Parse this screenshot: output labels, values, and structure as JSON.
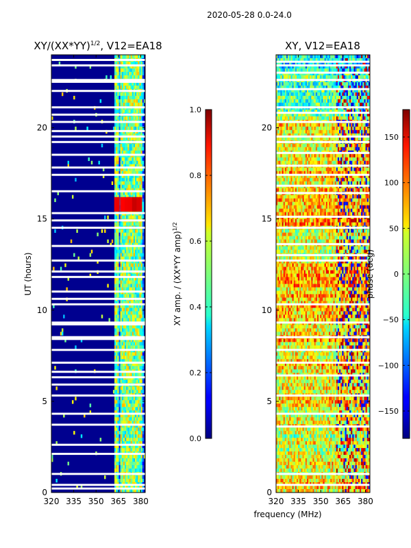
{
  "suptitle": "2020-05-28 0.0-24.0",
  "chart_data": [
    {
      "type": "heatmap",
      "title": "XY/(XX*YY)",
      "title_superscript": "1/2",
      "title_suffix": ", V12=EA18",
      "xlabel": "",
      "ylabel": "UT (hours)",
      "xlim": [
        320,
        383
      ],
      "ylim": [
        0,
        24
      ],
      "x_ticks": [
        320,
        335,
        350,
        365,
        380
      ],
      "y_ticks": [
        0,
        5,
        10,
        15,
        20
      ],
      "colorbar": {
        "label": "XY amp. / (XX*YY amp)",
        "label_superscript": "1/2",
        "range": [
          0.0,
          1.0
        ],
        "ticks": [
          "0.0",
          "0.2",
          "0.4",
          "0.6",
          "0.8",
          "1.0"
        ],
        "colormap": "jet"
      },
      "bright_channels_mhz": [
        364,
        368,
        371,
        373,
        376,
        379
      ],
      "rfi_burst_hours": [
        15.4,
        16.2
      ],
      "missing_hours": [
        0.2,
        0.4,
        1.0,
        2.1,
        2.6,
        3.7,
        4.3,
        5.3,
        5.9,
        6.3,
        6.6,
        7.1,
        7.8,
        8.4,
        8.5,
        9.2,
        9.3,
        10.3,
        10.6,
        11.0,
        11.8,
        12.1,
        12.7,
        13.5,
        14.5,
        14.9,
        15.3,
        16.5,
        17.4,
        17.8,
        18.5,
        19.2,
        19.5,
        19.8,
        20.3,
        20.7,
        21.1,
        22.0,
        22.5,
        22.6,
        23.4,
        23.7
      ]
    },
    {
      "type": "heatmap",
      "title": "XY, V12=EA18",
      "xlabel": "frequency (MHz)",
      "ylabel": "",
      "xlim": [
        320,
        383
      ],
      "ylim": [
        0,
        24
      ],
      "x_ticks": [
        320,
        335,
        350,
        365,
        380
      ],
      "y_ticks": [
        0,
        5,
        10,
        15,
        20
      ],
      "colorbar": {
        "label": "phase (deg)",
        "range": [
          -180,
          180
        ],
        "ticks": [
          "−150",
          "−100",
          "−50",
          "0",
          "50",
          "100",
          "150"
        ],
        "colormap": "jet"
      },
      "missing_hours": [
        0.4,
        1.0,
        3.6,
        4.3,
        5.3,
        6.4,
        7.1,
        7.8,
        8.5,
        9.3,
        10.3,
        12.7,
        13.0,
        13.6,
        14.5,
        15.1,
        16.4,
        16.8,
        17.4,
        17.9,
        18.6,
        19.2,
        19.5,
        20.3,
        20.8,
        21.1,
        22.1,
        22.6,
        23.0,
        23.4,
        23.6
      ]
    }
  ]
}
